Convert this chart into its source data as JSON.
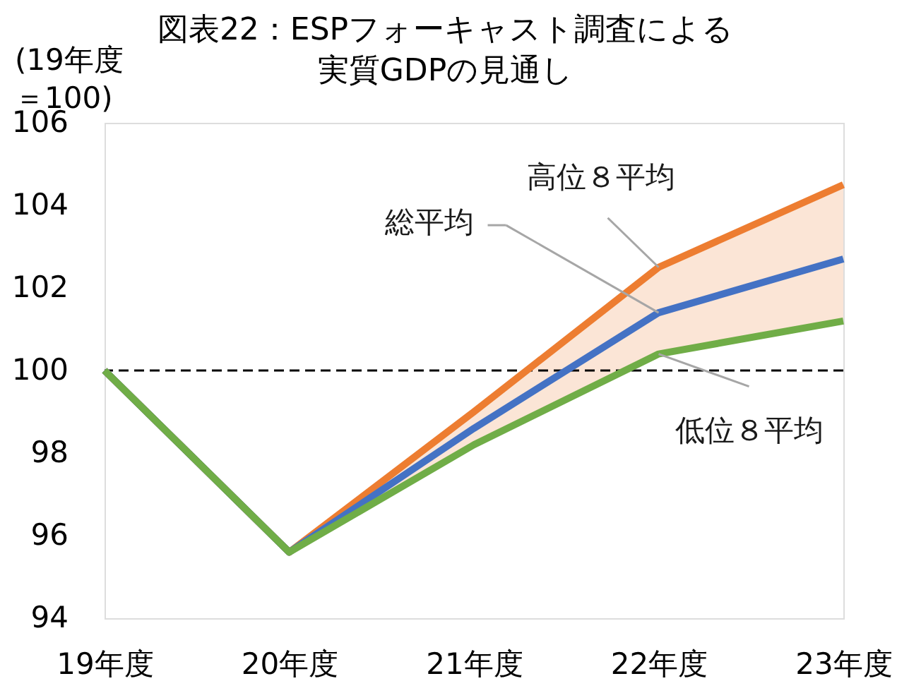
{
  "chart_data": {
    "type": "line",
    "title": "図表22：ESPフォーキャスト調査による実質GDPの見通し",
    "ylabel": "(19年度＝100)",
    "categories": [
      "19年度",
      "20年度",
      "21年度",
      "22年度",
      "23年度"
    ],
    "series": [
      {
        "name": "高位８平均",
        "color": "#ed7d31",
        "values": [
          100,
          95.6,
          99.0,
          102.5,
          104.5
        ],
        "lower": [
          100,
          95.6,
          98.2,
          100.4,
          101.2
        ],
        "upper": [
          100,
          95.6,
          99.0,
          102.5,
          104.5
        ]
      },
      {
        "name": "総平均",
        "color": "#4472c4",
        "values": [
          100,
          95.6,
          98.6,
          101.4,
          102.7
        ]
      },
      {
        "name": "低位８平均",
        "color": "#70ad47",
        "values": [
          100,
          95.6,
          98.2,
          100.4,
          101.2
        ]
      }
    ],
    "ylim": [
      94,
      106
    ],
    "yticks": [
      94,
      96,
      98,
      100,
      102,
      104,
      106
    ],
    "ref_lines": [
      {
        "axis": "y",
        "value": 100,
        "color": "#000000",
        "line_style": "dashed"
      }
    ],
    "grid": false,
    "legend": false,
    "line_style": "solid"
  }
}
